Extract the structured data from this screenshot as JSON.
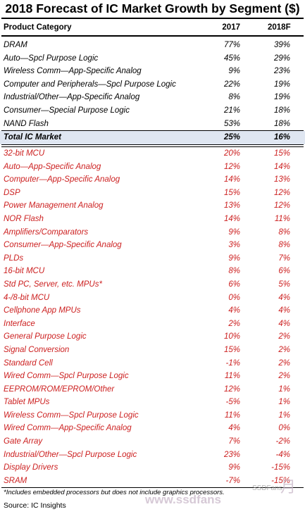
{
  "title": "2018 Forecast of IC Market Growth by Segment ($)",
  "header": {
    "category": "Product Category",
    "col2017": "2017",
    "col2018": "2018F"
  },
  "top_rows": [
    {
      "category": "DRAM",
      "v2017": "77%",
      "v2018": "39%"
    },
    {
      "category": "Auto—Spcl Purpose Logic",
      "v2017": "45%",
      "v2018": "29%"
    },
    {
      "category": "Wireless Comm—App-Specific Analog",
      "v2017": "9%",
      "v2018": "23%"
    },
    {
      "category": "Computer and Peripherals—Spcl Purpose Logic",
      "v2017": "22%",
      "v2018": "19%"
    },
    {
      "category": "Industrial/Other—App-Specific Analog",
      "v2017": "8%",
      "v2018": "19%"
    },
    {
      "category": "Consumer—Special Purpose Logic",
      "v2017": "21%",
      "v2018": "18%"
    },
    {
      "category": "NAND Flash",
      "v2017": "53%",
      "v2018": "18%"
    }
  ],
  "total_row": {
    "category": "Total IC Market",
    "v2017": "25%",
    "v2018": "16%"
  },
  "bottom_rows": [
    {
      "category": "32-bit MCU",
      "v2017": "20%",
      "v2018": "15%"
    },
    {
      "category": "Auto—App-Specific Analog",
      "v2017": "12%",
      "v2018": "14%"
    },
    {
      "category": "Computer—App-Specific Analog",
      "v2017": "14%",
      "v2018": "13%"
    },
    {
      "category": "DSP",
      "v2017": "15%",
      "v2018": "12%"
    },
    {
      "category": "Power Management Analog",
      "v2017": "13%",
      "v2018": "12%"
    },
    {
      "category": "NOR Flash",
      "v2017": "14%",
      "v2018": "11%"
    },
    {
      "category": "Amplifiers/Comparators",
      "v2017": "9%",
      "v2018": "8%"
    },
    {
      "category": "Consumer—App-Specific Analog",
      "v2017": "3%",
      "v2018": "8%"
    },
    {
      "category": "PLDs",
      "v2017": "9%",
      "v2018": "7%"
    },
    {
      "category": "16-bit MCU",
      "v2017": "8%",
      "v2018": "6%"
    },
    {
      "category": "Std PC, Server, etc. MPUs*",
      "v2017": "6%",
      "v2018": "5%"
    },
    {
      "category": "4-/8-bit MCU",
      "v2017": "0%",
      "v2018": "4%"
    },
    {
      "category": "Cellphone App MPUs",
      "v2017": "4%",
      "v2018": "4%"
    },
    {
      "category": "Interface",
      "v2017": "2%",
      "v2018": "4%"
    },
    {
      "category": "General Purpose Logic",
      "v2017": "10%",
      "v2018": "2%"
    },
    {
      "category": "Signal Conversion",
      "v2017": "15%",
      "v2018": "2%"
    },
    {
      "category": "Standard Cell",
      "v2017": "-1%",
      "v2018": "2%"
    },
    {
      "category": "Wired Comm—Spcl Purpose Logic",
      "v2017": "11%",
      "v2018": "2%"
    },
    {
      "category": "EEPROM/ROM/EPROM/Other",
      "v2017": "12%",
      "v2018": "1%"
    },
    {
      "category": "Tablet MPUs",
      "v2017": "-5%",
      "v2018": "1%"
    },
    {
      "category": "Wireless Comm—Spcl Purpose Logic",
      "v2017": "11%",
      "v2018": "1%"
    },
    {
      "category": "Wired Comm—App-Specific Analog",
      "v2017": "4%",
      "v2018": "0%"
    },
    {
      "category": "Gate Array",
      "v2017": "7%",
      "v2018": "-2%"
    },
    {
      "category": "Industrial/Other—Spcl Purpose Logic",
      "v2017": "23%",
      "v2018": "-4%"
    },
    {
      "category": "Display Drivers",
      "v2017": "9%",
      "v2018": "-15%"
    },
    {
      "category": "SRAM",
      "v2017": "-7%",
      "v2018": "-15%"
    }
  ],
  "footnote": "*Includes embedded processors but does not include graphics processors.",
  "source": "Source:  IC Insights",
  "watermark": {
    "site": "www.ssdfans",
    "tag": "SSDFans",
    "mark": "月"
  },
  "colors": {
    "growth_red": "#cc1f1f",
    "total_highlight": "#dfe6f1"
  }
}
